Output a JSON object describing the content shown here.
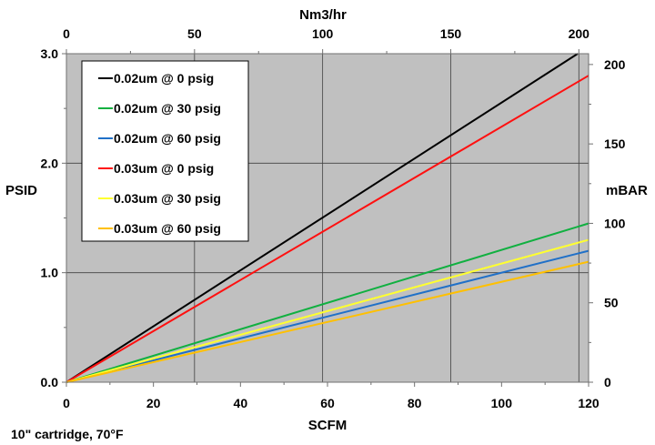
{
  "chart_data": {
    "type": "line",
    "x_axis": {
      "label": "SCFM",
      "range": [
        0,
        120
      ],
      "ticks": [
        0,
        20,
        40,
        60,
        80,
        100,
        120
      ],
      "tick_labels": [
        "0",
        "20",
        "40",
        "60",
        "80",
        "100",
        "120"
      ]
    },
    "y_axis": {
      "label": "PSID",
      "range": [
        0,
        3.0
      ],
      "ticks": [
        0,
        1.0,
        2.0,
        3.0
      ],
      "tick_labels": [
        "0.0",
        "1.0",
        "2.0",
        "3.0"
      ]
    },
    "x2_axis": {
      "label": "Nm3/hr",
      "range": [
        0,
        203.8
      ],
      "ticks": [
        0,
        50,
        100,
        150,
        200
      ],
      "tick_labels": [
        "0",
        "50",
        "100",
        "150",
        "200"
      ]
    },
    "y2_axis": {
      "label": "mBAR",
      "range": [
        0,
        206.8
      ],
      "ticks": [
        0,
        50,
        100,
        150,
        200
      ],
      "tick_labels": [
        "0",
        "50",
        "100",
        "150",
        "200"
      ]
    },
    "grid": true,
    "legend_position": "top-left",
    "series": [
      {
        "name": "0.02um @ 0 psig",
        "color": "#000000",
        "x": [
          0,
          117.5
        ],
        "y": [
          0,
          3.0
        ]
      },
      {
        "name": "0.02um @ 30 psig",
        "color": "#10b040",
        "x": [
          0,
          120
        ],
        "y": [
          0,
          1.45
        ]
      },
      {
        "name": "0.02um @ 60 psig",
        "color": "#2070c8",
        "x": [
          0,
          120
        ],
        "y": [
          0,
          1.2
        ]
      },
      {
        "name": "0.03um @ 0 psig",
        "color": "#ff1010",
        "x": [
          0,
          120
        ],
        "y": [
          0,
          2.8
        ]
      },
      {
        "name": "0.03um @ 30 psig",
        "color": "#ffff30",
        "x": [
          0,
          120
        ],
        "y": [
          0,
          1.3
        ]
      },
      {
        "name": "0.03um @ 60 psig",
        "color": "#ffc000",
        "x": [
          0,
          120
        ],
        "y": [
          0,
          1.1
        ]
      }
    ],
    "annotation": "10\" cartridge, 70°F",
    "plot_background": "#c0c0c0"
  }
}
